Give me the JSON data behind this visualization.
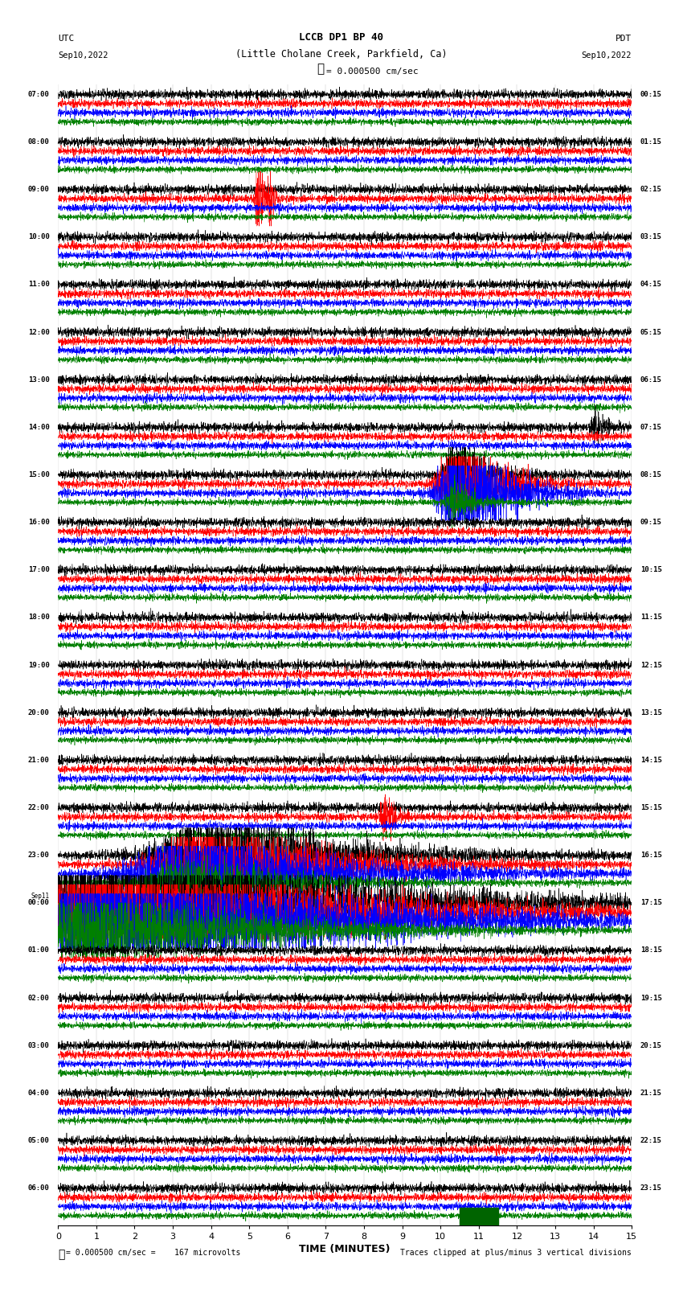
{
  "title_line1": "LCCB DP1 BP 40",
  "title_line2": "(Little Cholane Creek, Parkfield, Ca)",
  "scale_text": "= 0.000500 cm/sec",
  "left_header": "UTC",
  "left_date": "Sep10,2022",
  "right_header": "PDT",
  "right_date": "Sep10,2022",
  "xlabel": "TIME (MINUTES)",
  "bottom_note_left": "= 0.000500 cm/sec =    167 microvolts",
  "bottom_note_right": "Traces clipped at plus/minus 3 vertical divisions",
  "utc_labels": [
    "07:00",
    "08:00",
    "09:00",
    "10:00",
    "11:00",
    "12:00",
    "13:00",
    "14:00",
    "15:00",
    "16:00",
    "17:00",
    "18:00",
    "19:00",
    "20:00",
    "21:00",
    "22:00",
    "23:00",
    "Sep11\n00:00",
    "01:00",
    "02:00",
    "03:00",
    "04:00",
    "05:00",
    "06:00"
  ],
  "pdt_labels": [
    "00:15",
    "01:15",
    "02:15",
    "03:15",
    "04:15",
    "05:15",
    "06:15",
    "07:15",
    "08:15",
    "09:15",
    "10:15",
    "11:15",
    "12:15",
    "13:15",
    "14:15",
    "15:15",
    "16:15",
    "17:15",
    "18:15",
    "19:15",
    "20:15",
    "21:15",
    "22:15",
    "23:15"
  ],
  "n_rows": 24,
  "n_traces": 4,
  "trace_colors": [
    "black",
    "red",
    "blue",
    "green"
  ],
  "bg_color": "white",
  "minutes": 15,
  "figsize": [
    8.5,
    16.13
  ],
  "dpi": 100,
  "lm": 0.085,
  "rm": 0.075,
  "tm": 0.065,
  "bm": 0.055
}
